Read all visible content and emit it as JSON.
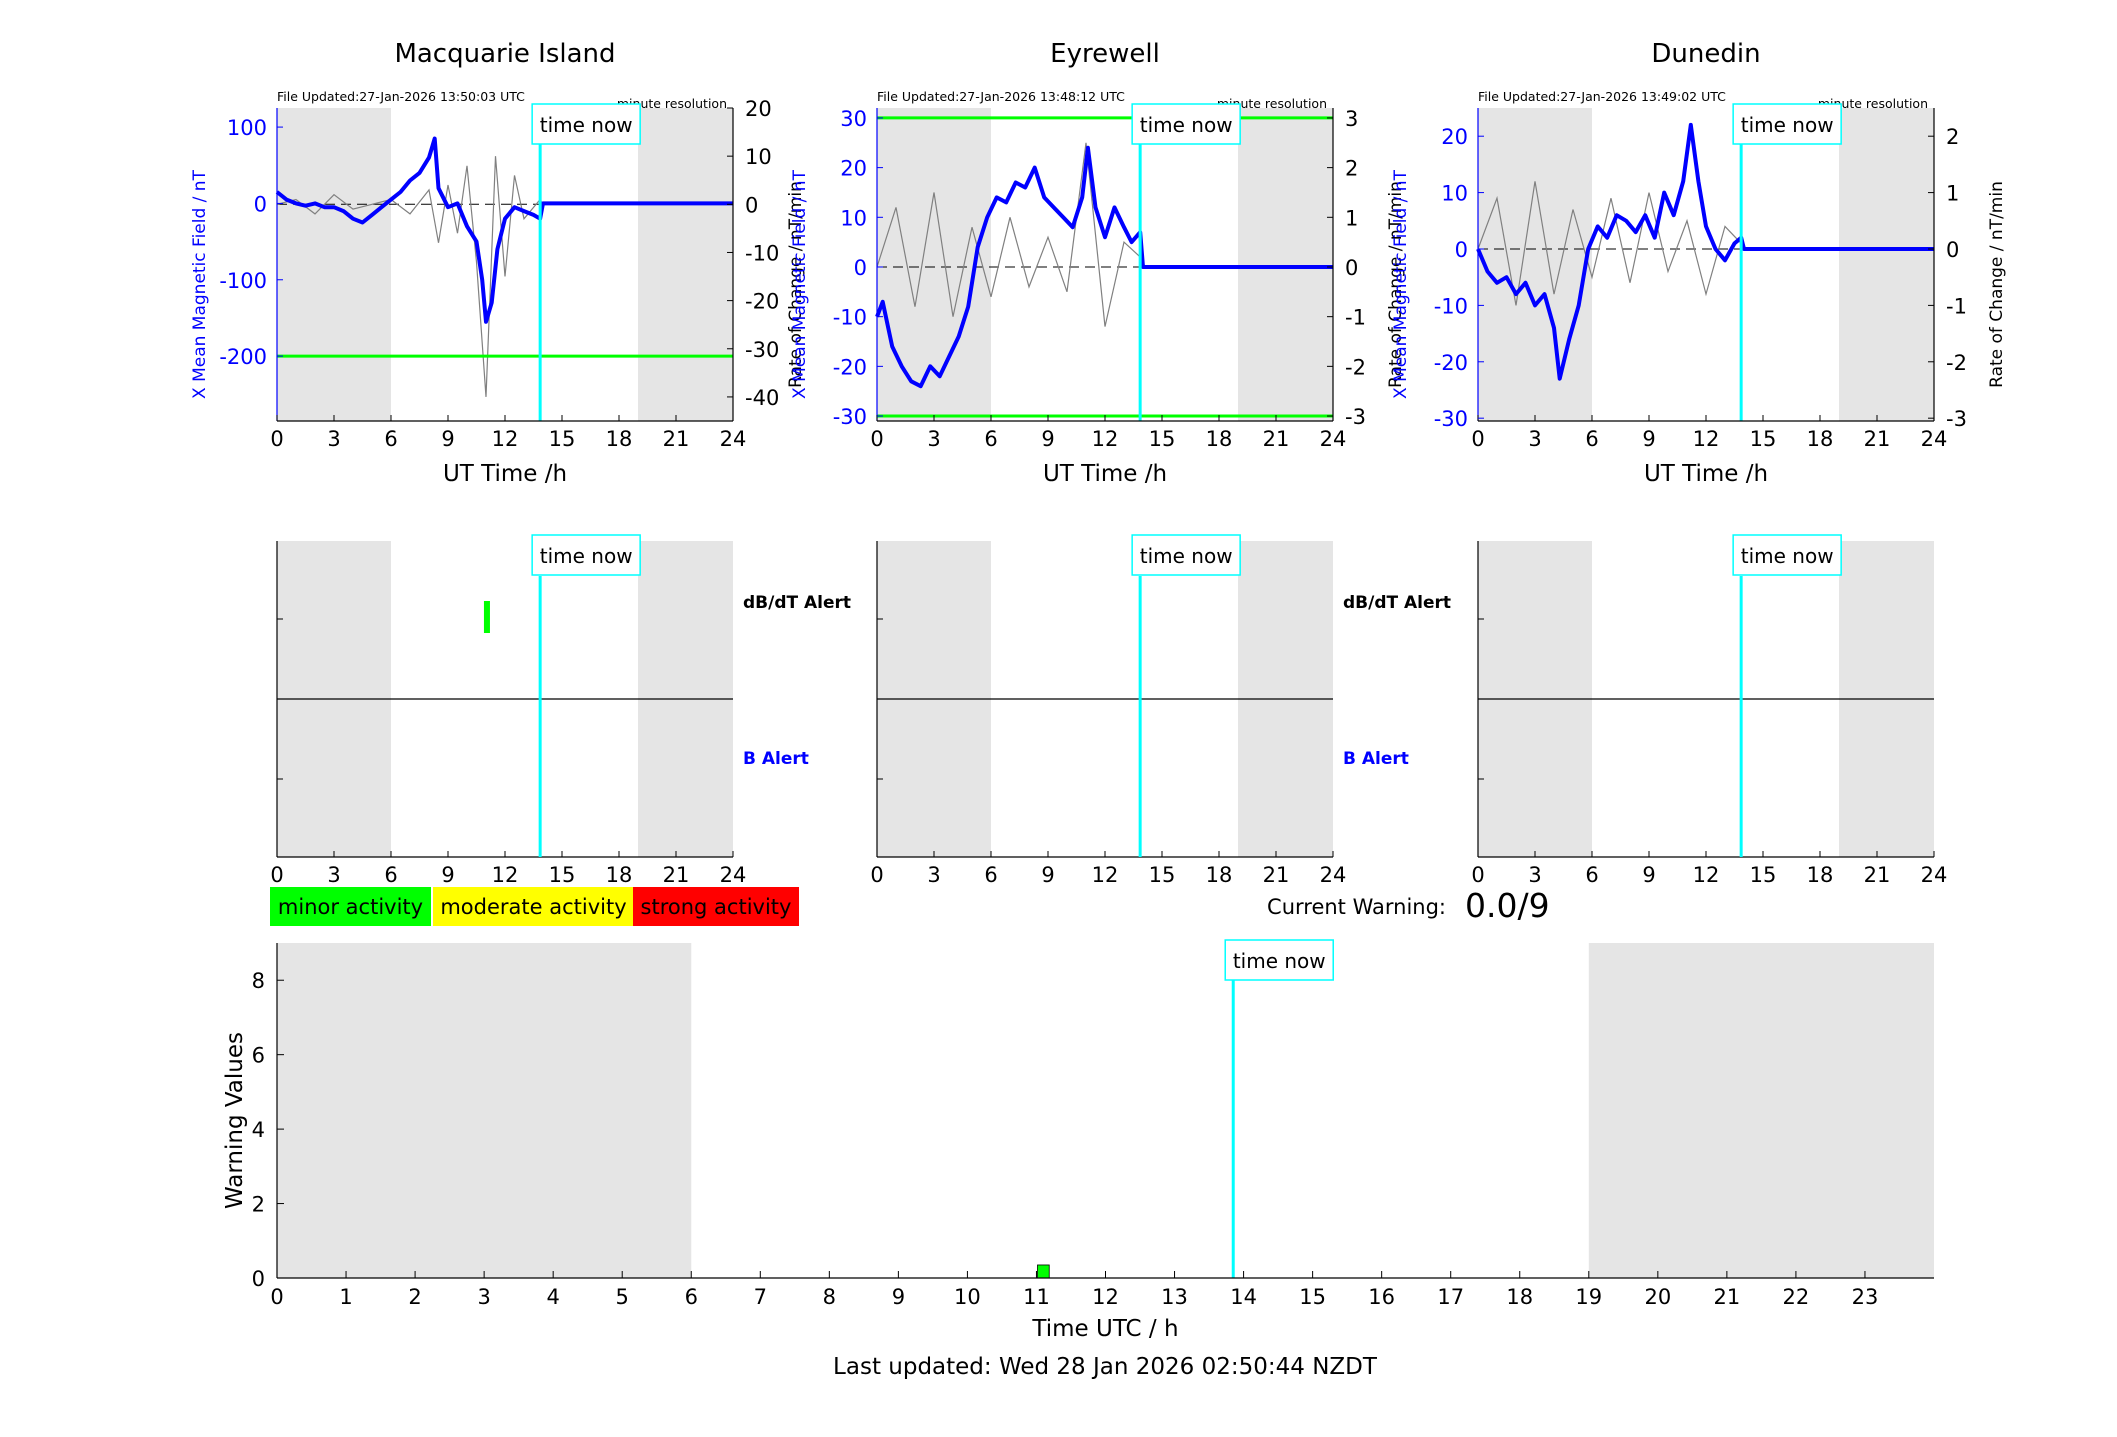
{
  "stations": [
    {
      "name": "Macquarie Island",
      "file_updated": "File Updated:27-Jan-2026 13:50:03 UTC",
      "resolution": "minute resolution",
      "ylabel_left": "X Mean Magnetic Field / nT",
      "ylabel_right": "Rate of Change / nT/min",
      "xlabel": "UT Time /h",
      "time_now_label": "time now",
      "dbdt_alert_label": "dB/dT Alert",
      "b_alert_label": "B Alert"
    },
    {
      "name": "Eyrewell",
      "file_updated": "File Updated:27-Jan-2026 13:48:12 UTC",
      "resolution": "minute resolution",
      "ylabel_left": "X Mean Magnetic Field / nT",
      "ylabel_right": "Rate of Change / nT/min",
      "xlabel": "UT Time /h",
      "time_now_label": "time now",
      "dbdt_alert_label": "dB/dT Alert",
      "b_alert_label": "B Alert"
    },
    {
      "name": "Dunedin",
      "file_updated": "File Updated:27-Jan-2026 13:49:02 UTC",
      "resolution": "minute resolution",
      "ylabel_left": "X Mean Magnetic Field / nT",
      "ylabel_right": "Rate of Change / nT/min",
      "xlabel": "UT Time /h",
      "time_now_label": "time now",
      "dbdt_alert_label": "",
      "b_alert_label": ""
    }
  ],
  "legend": {
    "minor": "minor activity",
    "moderate": "moderate activity",
    "strong": "strong activity"
  },
  "current_warning": {
    "label": "Current Warning:",
    "value": "0.0/9"
  },
  "warning_panel": {
    "ylabel": "Warning Values",
    "xlabel": "Time UTC / h",
    "time_now_label": "time now"
  },
  "footer": {
    "last_updated": "Last updated: Wed 28 Jan 2026 02:50:44 NZDT"
  },
  "colors": {
    "field": "#0000ff",
    "rate": "#808080",
    "threshold": "#00ff00",
    "time_now": "#00ffff",
    "night": "#e5e5e5",
    "minor": "#00ff00",
    "moderate": "#ffff00",
    "strong": "#ff0000"
  },
  "chart_data": [
    {
      "type": "line",
      "title": "Macquarie Island",
      "xlabel": "UT Time /h",
      "ylabel": "X Mean Magnetic Field / nT",
      "ylabel_right": "Rate of Change / nT/min",
      "xlim": [
        0,
        24
      ],
      "xticks": [
        0,
        3,
        6,
        9,
        12,
        15,
        18,
        21,
        24
      ],
      "ylim": [
        -285,
        125
      ],
      "yticks": [
        -200,
        -100,
        0,
        100
      ],
      "ylim_right": [
        -45,
        20
      ],
      "yticks_right": [
        -40,
        -30,
        -20,
        -10,
        0,
        10,
        20
      ],
      "night_bands": [
        [
          0,
          6
        ],
        [
          19,
          24
        ]
      ],
      "time_now": 13.85,
      "threshold_lines": [
        -200
      ],
      "series": [
        {
          "name": "X Mean Magnetic Field",
          "x": [
            0,
            0.5,
            1,
            1.5,
            2,
            2.5,
            3,
            3.5,
            4,
            4.5,
            5,
            5.5,
            6,
            6.5,
            7,
            7.5,
            8,
            8.3,
            8.5,
            9,
            9.5,
            10,
            10.5,
            10.8,
            11,
            11.3,
            11.6,
            12,
            12.5,
            13,
            13.5,
            13.85,
            14,
            24
          ],
          "values": [
            15,
            5,
            0,
            -3,
            0,
            -5,
            -5,
            -10,
            -20,
            -25,
            -15,
            -5,
            5,
            15,
            30,
            40,
            60,
            85,
            20,
            -5,
            0,
            -30,
            -50,
            -100,
            -155,
            -130,
            -60,
            -20,
            -5,
            -10,
            -15,
            -20,
            0,
            0
          ]
        },
        {
          "name": "Rate of Change",
          "x": [
            0,
            1,
            2,
            3,
            4,
            5,
            6,
            7,
            8,
            8.5,
            9,
            9.5,
            10,
            10.5,
            11,
            11.5,
            12,
            12.5,
            13,
            13.85,
            14,
            24
          ],
          "values": [
            0,
            1,
            -2,
            2,
            -1,
            0,
            1,
            -2,
            3,
            -8,
            4,
            -6,
            8,
            -12,
            -40,
            10,
            -15,
            6,
            -3,
            1,
            0,
            0
          ]
        }
      ]
    },
    {
      "type": "line",
      "title": "Eyrewell",
      "xlabel": "UT Time /h",
      "ylabel": "X Mean Magnetic Field / nT",
      "ylabel_right": "Rate of Change / nT/min",
      "xlim": [
        0,
        24
      ],
      "xticks": [
        0,
        3,
        6,
        9,
        12,
        15,
        18,
        21,
        24
      ],
      "ylim": [
        -31,
        32
      ],
      "yticks": [
        -30,
        -20,
        -10,
        0,
        10,
        20,
        30
      ],
      "ylim_right": [
        -3.1,
        3.2
      ],
      "yticks_right": [
        -3,
        -2,
        -1,
        0,
        1,
        2,
        3
      ],
      "night_bands": [
        [
          0,
          6
        ],
        [
          19,
          24
        ]
      ],
      "time_now": 13.85,
      "threshold_lines": [
        30,
        -30
      ],
      "series": [
        {
          "name": "X Mean Magnetic Field",
          "x": [
            0,
            0.3,
            0.8,
            1.3,
            1.8,
            2.3,
            2.8,
            3.3,
            3.8,
            4.3,
            4.8,
            5.3,
            5.8,
            6.3,
            6.8,
            7.3,
            7.8,
            8.3,
            8.8,
            9.3,
            9.8,
            10.3,
            10.8,
            11.1,
            11.5,
            12,
            12.5,
            13,
            13.4,
            13.85,
            14,
            24
          ],
          "values": [
            -10,
            -7,
            -16,
            -20,
            -23,
            -24,
            -20,
            -22,
            -18,
            -14,
            -8,
            4,
            10,
            14,
            13,
            17,
            16,
            20,
            14,
            12,
            10,
            8,
            14,
            24,
            12,
            6,
            12,
            8,
            5,
            7,
            0,
            0
          ]
        },
        {
          "name": "Rate of Change",
          "x": [
            0,
            1,
            2,
            3,
            4,
            5,
            6,
            7,
            8,
            9,
            10,
            11,
            12,
            13,
            13.85,
            14,
            24
          ],
          "values": [
            0,
            1.2,
            -0.8,
            1.5,
            -1.0,
            0.8,
            -0.6,
            1.0,
            -0.4,
            0.6,
            -0.5,
            2.5,
            -1.2,
            0.5,
            0.2,
            0,
            0
          ]
        }
      ]
    },
    {
      "type": "line",
      "title": "Dunedin",
      "xlabel": "UT Time /h",
      "ylabel": "X Mean Magnetic Field / nT",
      "ylabel_right": "Rate of Change / nT/min",
      "xlim": [
        0,
        24
      ],
      "xticks": [
        0,
        3,
        6,
        9,
        12,
        15,
        18,
        21,
        24
      ],
      "ylim": [
        -30.5,
        25
      ],
      "yticks": [
        -30,
        -20,
        -10,
        0,
        10,
        20
      ],
      "ylim_right": [
        -3.05,
        2.5
      ],
      "yticks_right": [
        -3,
        -2,
        -1,
        0,
        1,
        2
      ],
      "night_bands": [
        [
          0,
          6
        ],
        [
          19,
          24
        ]
      ],
      "time_now": 13.85,
      "threshold_lines": [],
      "series": [
        {
          "name": "X Mean Magnetic Field",
          "x": [
            0,
            0.5,
            1,
            1.5,
            2,
            2.5,
            3,
            3.5,
            4,
            4.3,
            4.8,
            5.3,
            5.8,
            6.3,
            6.8,
            7.3,
            7.8,
            8.3,
            8.8,
            9.3,
            9.8,
            10.3,
            10.8,
            11.2,
            11.6,
            12,
            12.5,
            13,
            13.5,
            13.85,
            14,
            24
          ],
          "values": [
            0,
            -4,
            -6,
            -5,
            -8,
            -6,
            -10,
            -8,
            -14,
            -23,
            -16,
            -10,
            0,
            4,
            2,
            6,
            5,
            3,
            6,
            2,
            10,
            6,
            12,
            22,
            12,
            4,
            0,
            -2,
            1,
            2,
            0,
            0
          ]
        },
        {
          "name": "Rate of Change",
          "x": [
            0,
            1,
            2,
            3,
            4,
            5,
            6,
            7,
            8,
            9,
            10,
            11,
            12,
            13,
            13.85,
            14,
            24
          ],
          "values": [
            0,
            0.9,
            -1.0,
            1.2,
            -0.8,
            0.7,
            -0.5,
            0.9,
            -0.6,
            1.0,
            -0.4,
            0.5,
            -0.8,
            0.4,
            0.1,
            0,
            0
          ]
        }
      ]
    },
    {
      "type": "bar",
      "title": "",
      "xlabel": "Time UTC / h",
      "ylabel": "Warning Values",
      "xlim": [
        0,
        24
      ],
      "xticks": [
        0,
        1,
        2,
        3,
        4,
        5,
        6,
        7,
        8,
        9,
        10,
        11,
        12,
        13,
        14,
        15,
        16,
        17,
        18,
        19,
        20,
        21,
        22,
        23
      ],
      "ylim": [
        0,
        9
      ],
      "yticks": [
        0,
        2,
        4,
        6,
        8
      ],
      "night_bands": [
        [
          0,
          6
        ],
        [
          19,
          24
        ]
      ],
      "time_now": 13.85,
      "bars": [
        {
          "x": 11.1,
          "width": 0.17,
          "value": 0.35,
          "level": "minor"
        }
      ]
    }
  ]
}
